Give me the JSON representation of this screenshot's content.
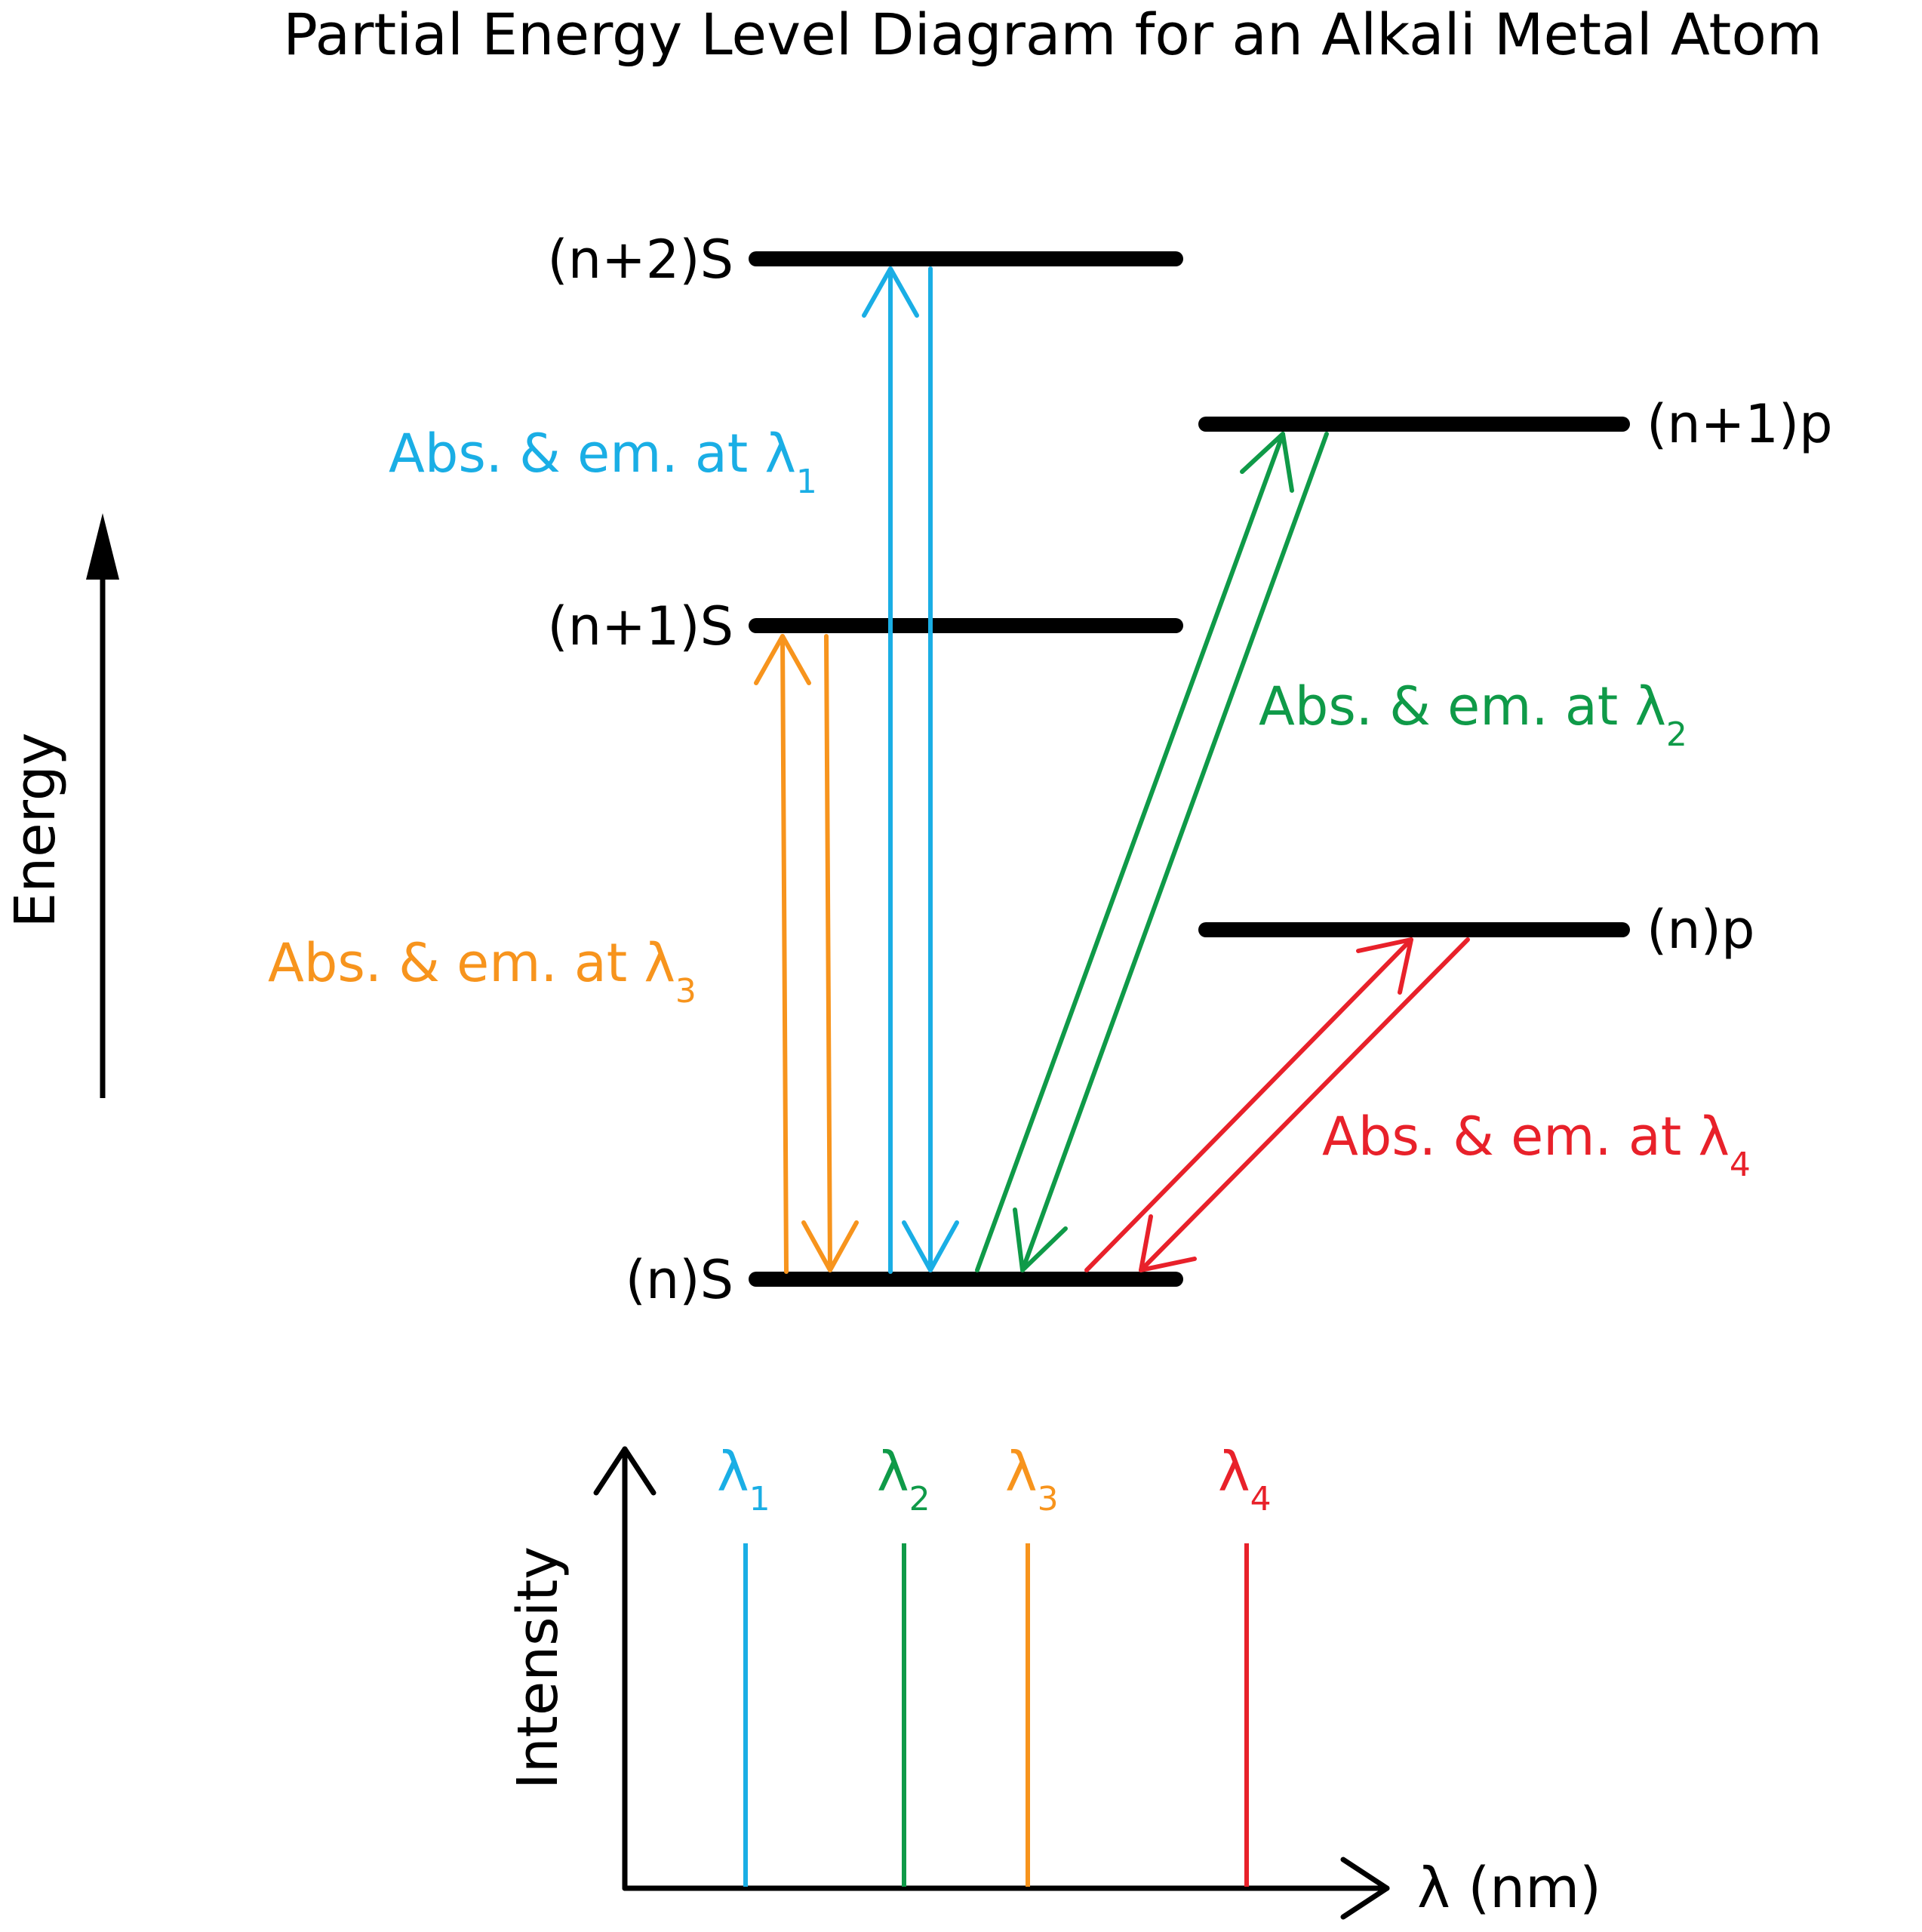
{
  "title": "Partial Energy Level Diagram for an Alkali Metal Atom",
  "energy_axis_label": "Energy",
  "levels": [
    {
      "id": "n2s",
      "label": "(n+2)S"
    },
    {
      "id": "n1p",
      "label": "(n+1)p"
    },
    {
      "id": "n1s",
      "label": "(n+1)S"
    },
    {
      "id": "np",
      "label": "(n)p"
    },
    {
      "id": "ns",
      "label": "(n)S"
    }
  ],
  "transitions": [
    {
      "id": "t1",
      "label_main": "Abs. & em. at λ",
      "label_sub": "1",
      "color": "#1aaee5"
    },
    {
      "id": "t2",
      "label_main": "Abs. & em. at λ",
      "label_sub": "2",
      "color": "#0f9a48"
    },
    {
      "id": "t3",
      "label_main": "Abs. & em. at λ",
      "label_sub": "3",
      "color": "#f7941d"
    },
    {
      "id": "t4",
      "label_main": "Abs. & em. at λ",
      "label_sub": "4",
      "color": "#e8212a"
    }
  ],
  "spectrum": {
    "y_axis_label": "Intensity",
    "x_axis_label": "λ (nm)",
    "lines": [
      {
        "symbol": "λ",
        "sub": "1",
        "color": "#1aaee5"
      },
      {
        "symbol": "λ",
        "sub": "2",
        "color": "#0f9a48"
      },
      {
        "symbol": "λ",
        "sub": "3",
        "color": "#f7941d"
      },
      {
        "symbol": "λ",
        "sub": "4",
        "color": "#e8212a"
      }
    ]
  }
}
